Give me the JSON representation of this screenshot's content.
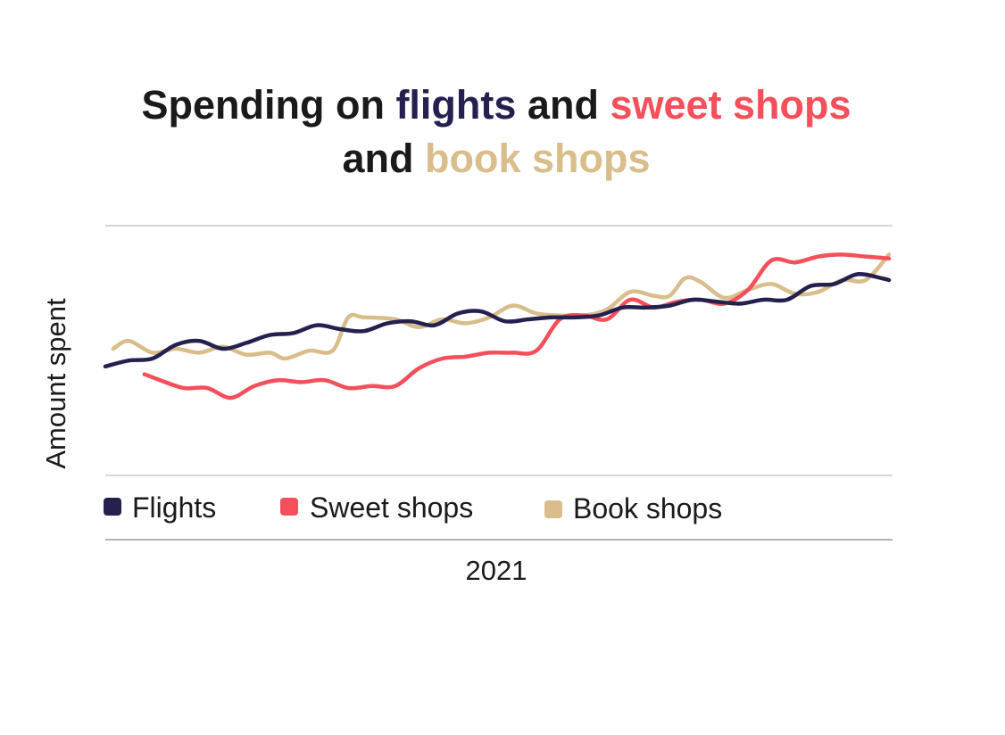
{
  "title": {
    "part1": "Spending on ",
    "part2": "flights",
    "part3": " and ",
    "part4": "sweet shops",
    "part5": "and ",
    "part6": "book shops"
  },
  "colors": {
    "flights": "#25214f",
    "sweet_shops": "#f44f5a",
    "book_shops": "#d9bd8a",
    "grid": "#c8c8c8",
    "text": "#1a1a1a"
  },
  "chart_data": {
    "type": "line",
    "title": "Spending on flights and sweet shops and book shops",
    "xlabel": "2021",
    "ylabel": "Amount spent",
    "x": [
      0,
      3,
      6,
      9,
      12,
      15,
      18,
      21,
      24,
      27,
      30,
      33,
      36,
      39,
      42,
      45,
      48,
      51,
      54,
      57,
      60,
      63,
      66,
      69,
      72,
      75,
      78,
      81,
      84,
      87,
      90,
      93,
      96,
      99,
      100
    ],
    "xlim": [
      0,
      100
    ],
    "ylim": [
      0,
      100
    ],
    "grid": "horizontal",
    "legend_position": "bottom",
    "series": [
      {
        "name": "Flights",
        "color": "#25214f",
        "values": [
          36,
          39,
          40,
          47,
          49,
          45,
          48,
          52,
          53,
          57,
          55,
          54,
          58,
          59,
          57,
          63,
          64,
          59,
          60,
          61,
          61,
          62,
          66,
          66,
          67,
          70,
          69,
          68,
          70,
          70,
          77,
          78,
          83,
          81,
          80
        ]
      },
      {
        "name": "Sweet shops",
        "color": "#f44f5a",
        "values": null,
        "x": [
          5,
          7,
          10,
          13,
          16,
          19,
          22,
          25,
          28,
          31,
          34,
          37,
          40,
          43,
          46,
          49,
          52,
          55,
          58,
          61,
          64,
          67,
          70,
          73,
          76,
          79,
          82,
          85,
          88,
          91,
          94,
          97,
          100
        ],
        "y": [
          32,
          29,
          25,
          25,
          20,
          26,
          29,
          28,
          29,
          25,
          26,
          26,
          35,
          40,
          41,
          43,
          43,
          44,
          60,
          62,
          60,
          70,
          66,
          69,
          70,
          68,
          75,
          90,
          89,
          92,
          93,
          92,
          91
        ]
      },
      {
        "name": "Book shops",
        "color": "#d9bd8a",
        "values": null,
        "x": [
          1,
          3,
          6,
          9,
          12,
          15,
          18,
          21,
          23,
          26,
          29,
          31,
          33,
          37,
          40,
          43,
          46,
          49,
          52,
          55,
          58,
          61,
          64,
          67,
          70,
          72,
          74,
          76,
          79,
          82,
          85,
          88,
          91,
          94,
          97,
          100
        ],
        "y": [
          45,
          49,
          43,
          45,
          43,
          46,
          42,
          43,
          40,
          44,
          44,
          61,
          61,
          60,
          56,
          60,
          58,
          61,
          67,
          63,
          62,
          62,
          65,
          74,
          72,
          72,
          81,
          79,
          71,
          75,
          78,
          73,
          74,
          80,
          80,
          93
        ]
      }
    ]
  },
  "legend": {
    "flights": "Flights",
    "sweet_shops": "Sweet shops",
    "book_shops": "Book shops"
  },
  "axis": {
    "y_label": "Amount spent",
    "x_label": "2021"
  }
}
